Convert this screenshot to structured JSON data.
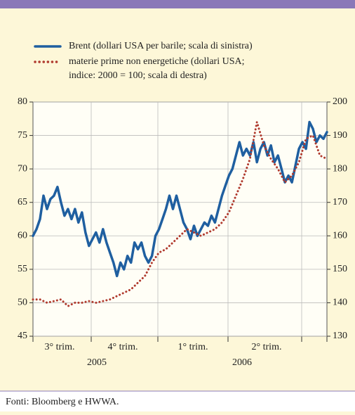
{
  "chart_data": {
    "type": "line",
    "series": [
      {
        "name": "Brent (dollari USA per barile; scala di sinistra)",
        "color": "#1f5fa0",
        "axis": "y",
        "values": [
          60,
          61,
          62.5,
          66,
          64,
          65.5,
          66,
          67.3,
          65,
          63,
          64,
          62.5,
          64,
          62,
          63.5,
          60.5,
          58.5,
          59.5,
          60.5,
          59,
          61,
          59,
          57.5,
          56,
          54,
          56,
          55,
          57,
          56,
          59,
          58,
          59,
          57,
          56,
          57,
          60,
          61,
          62.5,
          64,
          66,
          64,
          66,
          64,
          62,
          61,
          59.5,
          61.5,
          60,
          61,
          62,
          61.5,
          63,
          62,
          64,
          66,
          67.5,
          69,
          70,
          72,
          74,
          72,
          73,
          72,
          74,
          71,
          73,
          74,
          72,
          73.5,
          71,
          72,
          70,
          68,
          69,
          68,
          70.5,
          73,
          74,
          73,
          77,
          76,
          74,
          75,
          74.5,
          75.5
        ]
      },
      {
        "name": "materie prime non energetiche (dollari USA; indice: 2000 = 100; scala di destra)",
        "color": "#b03a2e",
        "axis": "y2",
        "values": [
          141,
          141,
          140,
          140.5,
          141,
          139,
          140,
          140,
          140.5,
          140,
          140.5,
          141,
          142,
          143,
          144,
          146,
          148,
          152,
          155,
          156,
          158,
          160,
          162,
          161,
          160,
          161,
          162,
          164,
          167,
          172,
          177,
          183,
          194,
          187,
          183,
          180,
          176,
          178,
          182,
          189,
          190,
          184,
          183
        ]
      }
    ],
    "quarters": [
      "3° trim.",
      "4° trim.",
      "1° trim.",
      "2° trim."
    ],
    "years": [
      "2005",
      "2006"
    ],
    "ylim": [
      45,
      80
    ],
    "yticks": [
      45,
      50,
      55,
      60,
      65,
      70,
      75,
      80
    ],
    "y2lim": [
      130,
      200
    ],
    "y2ticks": [
      130,
      140,
      150,
      160,
      170,
      180,
      190,
      200
    ],
    "grid": true,
    "source": "Fonti: Bloomberg e HWWA."
  }
}
